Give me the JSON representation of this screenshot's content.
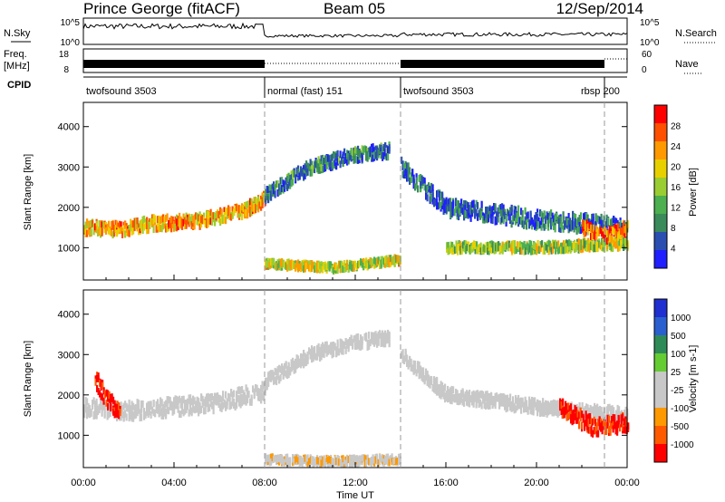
{
  "header": {
    "station": "Prince George (fitACF)",
    "beam": "Beam 05",
    "date": "12/Sep/2014"
  },
  "side_labels": {
    "nsky": "N.Sky",
    "nsearch": "N.Search",
    "freq": "Freq.",
    "freq_unit": "[MHz]",
    "nave": "Nave",
    "cpid": "CPID"
  },
  "top_ticks": {
    "nsky_left": [
      "10^5",
      "10^0"
    ],
    "nsky_right": [
      "10^5",
      "10^0"
    ],
    "freq_left": [
      "18",
      "8"
    ],
    "nave_right": [
      "60",
      "0"
    ]
  },
  "cpid_segments": [
    {
      "label": "twofsound 3503",
      "start_hour": 0.0
    },
    {
      "label": "normal (fast) 151",
      "start_hour": 8.0
    },
    {
      "label": "twofsound 3503",
      "start_hour": 14.0
    },
    {
      "label": "rbsp 200",
      "start_hour": 23.0
    }
  ],
  "colors": {
    "power_scale": [
      "#1f1fff",
      "#2a4fb0",
      "#3a8a5a",
      "#4caf50",
      "#9acd32",
      "#e8d000",
      "#ff9900",
      "#ff5000",
      "#ff0000"
    ],
    "velocity_scale": [
      "#ff0000",
      "#ff5a00",
      "#ff9900",
      "#c8c8c8",
      "#c8c8c8",
      "#66cc33",
      "#2e8b57",
      "#2a5fd0",
      "#1f2fd0"
    ]
  },
  "chart_data": [
    {
      "type": "heatmap",
      "title": "",
      "xlabel": "",
      "ylabel": "Slant Range [km]",
      "x_ticks": [
        "00:00",
        "04:00",
        "08:00",
        "12:00",
        "16:00",
        "20:00",
        "00:00"
      ],
      "xlim_hours": [
        0,
        24
      ],
      "ylim": [
        200,
        4600
      ],
      "y_ticks": [
        "1000",
        "2000",
        "3000",
        "4000"
      ],
      "colorbar": {
        "label": "Power [dB]",
        "ticks": [
          "4",
          "8",
          "12",
          "16",
          "20",
          "24",
          "28"
        ],
        "range": [
          0,
          32
        ]
      },
      "bands": [
        {
          "hours": [
            0.0,
            1.5,
            3.0,
            5.0,
            7.0,
            8.0
          ],
          "range_km": [
            1500,
            1450,
            1600,
            1650,
            1900,
            2200
          ],
          "width_km": 300,
          "power_db": 22
        },
        {
          "hours": [
            8.0,
            10.0,
            12.0,
            13.5
          ],
          "range_km": [
            2300,
            3000,
            3300,
            3400
          ],
          "width_km": 300,
          "power_db": 8
        },
        {
          "hours": [
            14.0,
            16.0,
            20.0,
            24.0
          ],
          "range_km": [
            3000,
            2000,
            1700,
            1500
          ],
          "width_km": 400,
          "power_db": 6
        },
        {
          "hours": [
            8.0,
            11.0,
            14.0
          ],
          "range_km": [
            600,
            500,
            700
          ],
          "width_km": 150,
          "power_db": 18
        },
        {
          "hours": [
            16.0,
            20.0,
            24.0
          ],
          "range_km": [
            1000,
            1000,
            1100
          ],
          "width_km": 200,
          "power_db": 16
        },
        {
          "hours": [
            22.0,
            23.0,
            24.0
          ],
          "range_km": [
            1500,
            1300,
            1500
          ],
          "width_km": 300,
          "power_db": 26
        }
      ]
    },
    {
      "type": "heatmap",
      "title": "",
      "xlabel": "Time UT",
      "ylabel": "Slant Range [km]",
      "x_ticks": [
        "00:00",
        "04:00",
        "08:00",
        "12:00",
        "16:00",
        "20:00",
        "00:00"
      ],
      "xlim_hours": [
        0,
        24
      ],
      "ylim": [
        200,
        4600
      ],
      "y_ticks": [
        "1000",
        "2000",
        "3000",
        "4000"
      ],
      "colorbar": {
        "label": "Velocity [m s-1]",
        "ticks": [
          "-1000",
          "-500",
          "-100",
          "-25",
          "25",
          "100",
          "500",
          "1000"
        ],
        "range": [
          -1000,
          1000
        ]
      },
      "bands": [
        {
          "hours": [
            0.0,
            2.0,
            4.0,
            6.0,
            8.0
          ],
          "range_km": [
            1700,
            1600,
            1700,
            1800,
            2100
          ],
          "width_km": 400,
          "velocity": 0
        },
        {
          "hours": [
            0.5,
            1.0,
            1.6
          ],
          "range_km": [
            2400,
            1900,
            1500
          ],
          "width_km": 400,
          "velocity": -900
        },
        {
          "hours": [
            8.0,
            10.0,
            12.0,
            13.5
          ],
          "range_km": [
            2300,
            3000,
            3300,
            3400
          ],
          "width_km": 300,
          "velocity": 0
        },
        {
          "hours": [
            14.0,
            16.0,
            20.0,
            24.0
          ],
          "range_km": [
            3000,
            2000,
            1700,
            1500
          ],
          "width_km": 300,
          "velocity": 0
        },
        {
          "hours": [
            8.0,
            11.0,
            14.0
          ],
          "range_km": [
            400,
            350,
            400
          ],
          "width_km": 150,
          "velocity": -200
        },
        {
          "hours": [
            21.0,
            22.5,
            24.0
          ],
          "range_km": [
            1700,
            1200,
            1300
          ],
          "width_km": 400,
          "velocity": -900
        }
      ]
    }
  ]
}
